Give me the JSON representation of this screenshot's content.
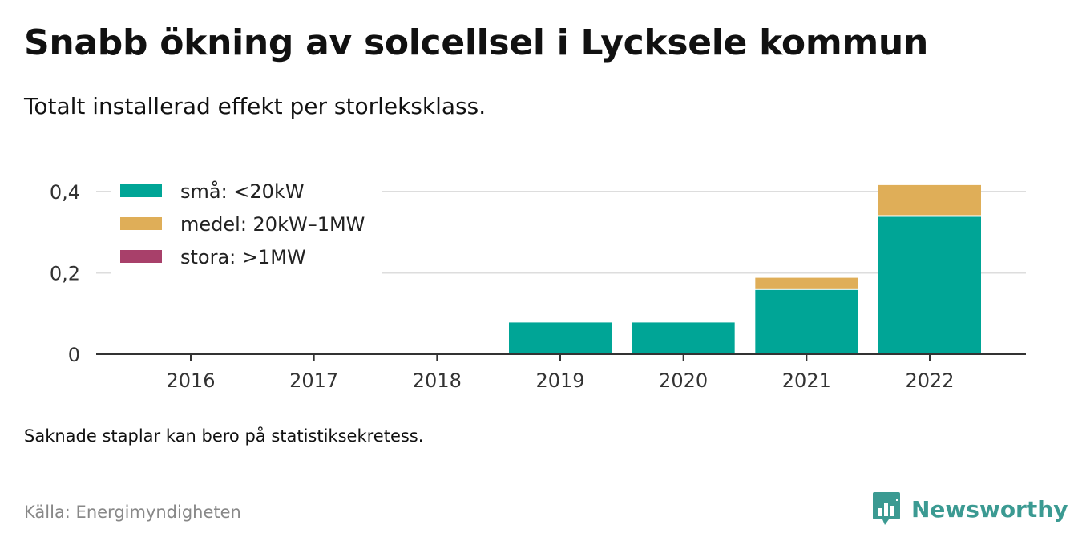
{
  "title": "Snabb ökning av solcellsel i Lycksele kommun",
  "subtitle": "Totalt installerad effekt per storleksklass.",
  "note": "Saknade staplar kan bero på statistiksekretess.",
  "source": "Källa: Energimyndigheten",
  "brand": {
    "name": "Newsworthy",
    "color": "#3b9a92",
    "logo_icon": "chart-bubble-icon"
  },
  "chart_data": {
    "type": "bar",
    "stacked": true,
    "categories": [
      "2016",
      "2017",
      "2018",
      "2019",
      "2020",
      "2021",
      "2022"
    ],
    "series": [
      {
        "name": "små: <20kW",
        "color": "#00a596",
        "values": [
          0,
          0,
          0,
          0.078,
          0.078,
          0.158,
          0.338
        ]
      },
      {
        "name": "medel: 20kW–1MW",
        "color": "#dfae58",
        "values": [
          0,
          0,
          0,
          0,
          0,
          0.03,
          0.078
        ]
      },
      {
        "name": "stora: >1MW",
        "color": "#a8406a",
        "values": [
          0,
          0,
          0,
          0,
          0,
          0,
          0
        ]
      }
    ],
    "yticks": [
      {
        "value": 0,
        "label": "0"
      },
      {
        "value": 0.2,
        "label": "0,2"
      },
      {
        "value": 0.4,
        "label": "0,4"
      }
    ],
    "ylim": [
      0,
      0.4
    ],
    "grid": true,
    "legend_position": "top-left",
    "xlabel": "",
    "ylabel": ""
  }
}
